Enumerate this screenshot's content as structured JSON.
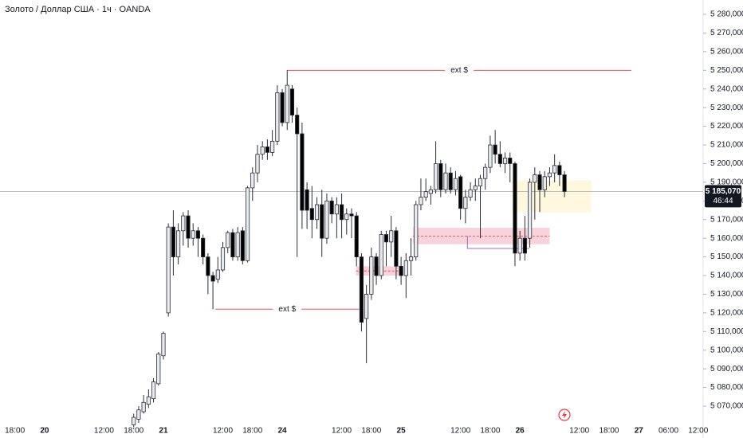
{
  "chart_data": {
    "type": "candlestick",
    "title": "Золото / Доллар США · 1ч · OANDA",
    "x": [
      0,
      1,
      2,
      3,
      4,
      5,
      6,
      7,
      8,
      9,
      10,
      11,
      12,
      13,
      14,
      15,
      16,
      17,
      18,
      19,
      20,
      21,
      22,
      23,
      24,
      25,
      26,
      27,
      28,
      29,
      30,
      31,
      32,
      33,
      34,
      35,
      36,
      37,
      38,
      39,
      40,
      41,
      42,
      43,
      44,
      45,
      46,
      47,
      48,
      49,
      50,
      51,
      52,
      53,
      54,
      55,
      56,
      57,
      58,
      59,
      60,
      61,
      62,
      63,
      64,
      65,
      66,
      67,
      68,
      69,
      70,
      71,
      72,
      73,
      74,
      75,
      76,
      77,
      78,
      79,
      80,
      81,
      82,
      83,
      84,
      85,
      86,
      87
    ],
    "open": [
      5060,
      5063,
      5067,
      5071,
      5074,
      5082,
      5097,
      5120,
      5166,
      5150,
      5164,
      5172,
      5160,
      5164,
      5160,
      5150,
      5140,
      5138,
      5143,
      5155,
      5163,
      5150,
      5164,
      5148,
      5187,
      5195,
      5205,
      5209,
      5206,
      5212,
      5238,
      5222,
      5240,
      5226,
      5216,
      5186,
      5176,
      5170,
      5178,
      5160,
      5180,
      5173,
      5178,
      5170,
      5173,
      5172,
      5150,
      5117,
      5130,
      5150,
      5140,
      5162,
      5158,
      5164,
      5145,
      5140,
      5148,
      5150,
      5178,
      5182,
      5184,
      5186,
      5200,
      5186,
      5195,
      5186,
      5193,
      5176,
      5182,
      5186,
      5188,
      5192,
      5198,
      5210,
      5205,
      5200,
      5203,
      5200,
      5152,
      5160,
      5160,
      5190,
      5194,
      5186,
      5193,
      5195,
      5199,
      5194
    ],
    "high": [
      5066,
      5070,
      5076,
      5079,
      5085,
      5099,
      5110,
      5168,
      5175,
      5168,
      5174,
      5175,
      5168,
      5166,
      5162,
      5152,
      5142,
      5150,
      5158,
      5164,
      5165,
      5166,
      5166,
      5188,
      5198,
      5210,
      5212,
      5213,
      5218,
      5242,
      5240,
      5250,
      5242,
      5230,
      5222,
      5190,
      5188,
      5182,
      5186,
      5184,
      5182,
      5182,
      5184,
      5176,
      5176,
      5174,
      5152,
      5135,
      5155,
      5152,
      5164,
      5164,
      5172,
      5166,
      5150,
      5152,
      5160,
      5180,
      5192,
      5192,
      5188,
      5212,
      5202,
      5200,
      5198,
      5196,
      5194,
      5186,
      5190,
      5192,
      5194,
      5200,
      5215,
      5218,
      5212,
      5206,
      5206,
      5201,
      5164,
      5172,
      5192,
      5198,
      5196,
      5196,
      5198,
      5205,
      5201,
      5196
    ],
    "low": [
      5058,
      5061,
      5066,
      5069,
      5072,
      5081,
      5095,
      5118,
      5140,
      5146,
      5156,
      5155,
      5156,
      5150,
      5146,
      5130,
      5122,
      5136,
      5142,
      5152,
      5148,
      5148,
      5146,
      5147,
      5180,
      5190,
      5202,
      5202,
      5204,
      5210,
      5220,
      5218,
      5222,
      5150,
      5165,
      5165,
      5160,
      5165,
      5150,
      5157,
      5168,
      5160,
      5160,
      5162,
      5160,
      5145,
      5110,
      5093,
      5127,
      5135,
      5138,
      5145,
      5150,
      5138,
      5135,
      5128,
      5140,
      5148,
      5175,
      5180,
      5178,
      5184,
      5182,
      5184,
      5184,
      5183,
      5170,
      5168,
      5180,
      5180,
      5160,
      5186,
      5195,
      5200,
      5198,
      5195,
      5190,
      5145,
      5148,
      5148,
      5155,
      5170,
      5174,
      5182,
      5188,
      5190,
      5188,
      5182
    ],
    "close": [
      5064,
      5068,
      5072,
      5075,
      5083,
      5098,
      5109,
      5166,
      5150,
      5164,
      5172,
      5160,
      5164,
      5160,
      5150,
      5140,
      5137,
      5143,
      5155,
      5163,
      5150,
      5163,
      5148,
      5187,
      5195,
      5205,
      5209,
      5206,
      5212,
      5238,
      5222,
      5242,
      5226,
      5216,
      5175,
      5175,
      5170,
      5178,
      5160,
      5180,
      5173,
      5178,
      5170,
      5173,
      5172,
      5150,
      5115,
      5130,
      5150,
      5140,
      5162,
      5158,
      5164,
      5145,
      5140,
      5148,
      5150,
      5178,
      5182,
      5185,
      5186,
      5200,
      5186,
      5195,
      5186,
      5192,
      5176,
      5182,
      5186,
      5188,
      5192,
      5198,
      5210,
      5205,
      5200,
      5203,
      5200,
      5152,
      5160,
      5152,
      5190,
      5194,
      5186,
      5193,
      5195,
      5199,
      5194,
      5185.07
    ],
    "up_color": "#e8eaee",
    "down_color": "#000000",
    "wick_color": "#2a2e39",
    "xlim": [
      -27,
      115
    ],
    "xticks": [
      {
        "value": -24,
        "label": "18:00"
      },
      {
        "value": -18,
        "label": "20"
      },
      {
        "value": -6,
        "label": "12:00"
      },
      {
        "value": 0,
        "label": "18:00"
      },
      {
        "value": 6,
        "label": "21"
      },
      {
        "value": 18,
        "label": "12:00"
      },
      {
        "value": 24,
        "label": "18:00"
      },
      {
        "value": 30,
        "label": "24"
      },
      {
        "value": 42,
        "label": "12:00"
      },
      {
        "value": 48,
        "label": "18:00"
      },
      {
        "value": 54,
        "label": "25"
      },
      {
        "value": 66,
        "label": "12:00"
      },
      {
        "value": 72,
        "label": "18:00"
      },
      {
        "value": 78,
        "label": "26"
      },
      {
        "value": 90,
        "label": "12:00"
      },
      {
        "value": 96,
        "label": "18:00"
      },
      {
        "value": 102,
        "label": "27"
      },
      {
        "value": 108,
        "label": "06:00"
      },
      {
        "value": 114,
        "label": "12:00"
      }
    ],
    "ylim": [
      5057.2,
      5287.7
    ],
    "yticks": [
      {
        "value": 5070,
        "label": "5 070,000"
      },
      {
        "value": 5080,
        "label": "5 080,000"
      },
      {
        "value": 5090,
        "label": "5 090,000"
      },
      {
        "value": 5100,
        "label": "5 100,000"
      },
      {
        "value": 5110,
        "label": "5 110,000"
      },
      {
        "value": 5120,
        "label": "5 120,000"
      },
      {
        "value": 5130,
        "label": "5 130,000"
      },
      {
        "value": 5140,
        "label": "5 140,000"
      },
      {
        "value": 5150,
        "label": "5 150,000"
      },
      {
        "value": 5160,
        "label": "5 160,000"
      },
      {
        "value": 5170,
        "label": "5 170,000"
      },
      {
        "value": 5180,
        "label": "5 180,000"
      },
      {
        "value": 5190,
        "label": "5 190,000"
      },
      {
        "value": 5200,
        "label": "5 200,000"
      },
      {
        "value": 5210,
        "label": "5 210,000"
      },
      {
        "value": 5220,
        "label": "5 220,000"
      },
      {
        "value": 5230,
        "label": "5 230,000"
      },
      {
        "value": 5240,
        "label": "5 240,000"
      },
      {
        "value": 5250,
        "label": "5 250,000"
      },
      {
        "value": 5260,
        "label": "5 260,000"
      },
      {
        "value": 5270,
        "label": "5 270,000"
      },
      {
        "value": 5280,
        "label": "5 280,000"
      }
    ],
    "grid": false,
    "last_price": {
      "value": 5185.07,
      "label": "5 185,070"
    },
    "countdown": "46:44",
    "annotations": [
      {
        "text": "ext $",
        "y": 5250,
        "x_start": 31,
        "x_end": 100.5,
        "color": "#f23645"
      },
      {
        "text": "ext $",
        "y": 5122,
        "x_start": 16.5,
        "x_end": 45.5,
        "color": "#f23645"
      }
    ],
    "zones": [
      {
        "x": [
          56.4,
          84
        ],
        "y": [
          5156.8,
          5165.6
        ],
        "color": "#f8c8d2",
        "midline": "#f23645"
      },
      {
        "x": [
          44.9,
          54.5
        ],
        "y": [
          5140,
          5145
        ],
        "color": "#f8c8d2",
        "midline": "#f23645"
      },
      {
        "x": [
          76.4,
          92.4
        ],
        "y": [
          5174,
          5191
        ],
        "color": "#fdf6d6"
      },
      {
        "x": [
          67.4,
          79.9
        ],
        "y": [
          5154.5,
          5161.3
        ],
        "outline": "#9c6fc0"
      }
    ]
  }
}
